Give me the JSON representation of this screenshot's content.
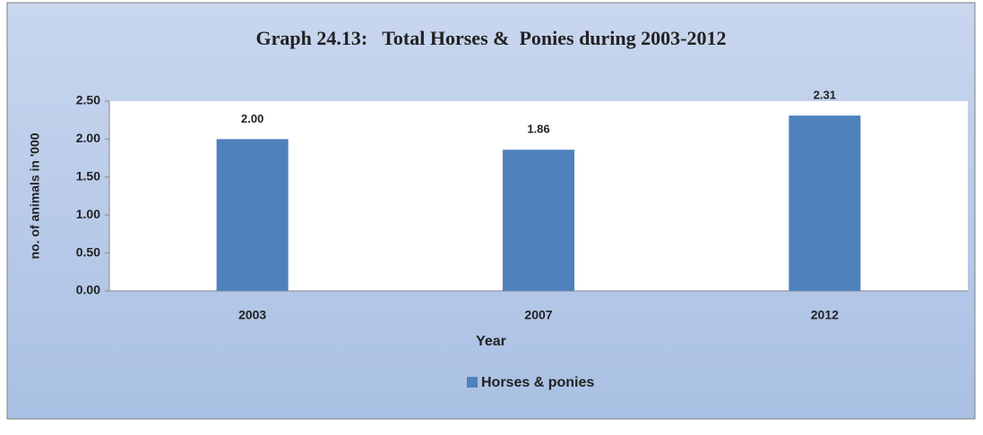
{
  "chart_data": {
    "type": "bar",
    "title": "Graph 24.13:   Total Horses &  Ponies during 2003-2012",
    "x_label": "Year",
    "y_label": "no. of animals in '000",
    "categories": [
      "2003",
      "2007",
      "2012"
    ],
    "series": [
      {
        "name": "Horses & ponies",
        "color": "#4f81bd",
        "values": [
          2.0,
          1.86,
          2.31
        ],
        "value_labels": [
          "2.00",
          "1.86",
          "2.31"
        ]
      }
    ],
    "ylim": [
      0,
      2.5
    ],
    "yticks": [
      {
        "value": 0,
        "label": "0.00"
      },
      {
        "value": 0.5,
        "label": "0.50"
      },
      {
        "value": 1,
        "label": "1.00"
      },
      {
        "value": 1.5,
        "label": "1.50"
      },
      {
        "value": 2,
        "label": "2.00"
      },
      {
        "value": 2.5,
        "label": "2.50"
      }
    ],
    "grid": false,
    "legend": "bottom"
  }
}
